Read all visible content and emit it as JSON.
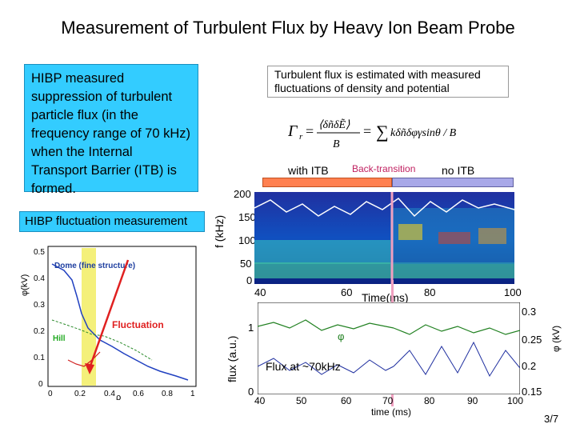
{
  "title": "Measurement of Turbulent Flux by Heavy Ion Beam Probe",
  "left_panel": {
    "summary": "HIBP measured suppression of turbulent particle flux (in the frequency range of 70 kHz) when the Internal Transport Barrier (ITB) is formed.",
    "fluct_label": "HIBP fluctuation measurement",
    "plot": {
      "ylabel": "φ(kV)",
      "xlabel": "ρ",
      "dome_label": "Dome (fine structure)",
      "fluct_label": "Fluctuation",
      "hill_label": "Hill",
      "yticks": [
        "0",
        "0.1",
        "0.2",
        "0.3",
        "0.4",
        "0.5"
      ],
      "xticks": [
        "0",
        "0.2",
        "0.4",
        "0.6",
        "0.8",
        "1"
      ]
    }
  },
  "right_panel": {
    "note": "Turbulent flux is estimated with measured fluctuations of density and potential",
    "phase_labels": {
      "with_itb": "with ITB",
      "back": "Back-transition",
      "no_itb": "no ITB"
    },
    "spectrogram": {
      "ylabel": "f (kHz)",
      "yticks": [
        "200",
        "150",
        "100",
        "50",
        "0"
      ],
      "xticks": [
        "40",
        "60",
        "80",
        "100"
      ],
      "xlabel": "Time(ms)"
    },
    "flux_plot": {
      "ylabel": "flux (a.u.)",
      "y_left_ticks": [
        "1",
        "0"
      ],
      "y_right_ticks": [
        "0.3",
        "0.25",
        "0.2",
        "0.15"
      ],
      "y_right_label": "φ (kV)",
      "xticks": [
        "40",
        "50",
        "60",
        "70",
        "80",
        "90",
        "100"
      ],
      "xlabel": "time (ms)",
      "phi_marker": "φ",
      "flux_annotation": "Flux at ~70kHz"
    },
    "transition_label": "transition"
  },
  "page_number": "3/7",
  "colors": {
    "cyan": "#33ccff",
    "orange": "#ff8050",
    "lavender": "#a8a8e8",
    "pink": "#f0a0c0",
    "red_arrow": "#e02020"
  }
}
